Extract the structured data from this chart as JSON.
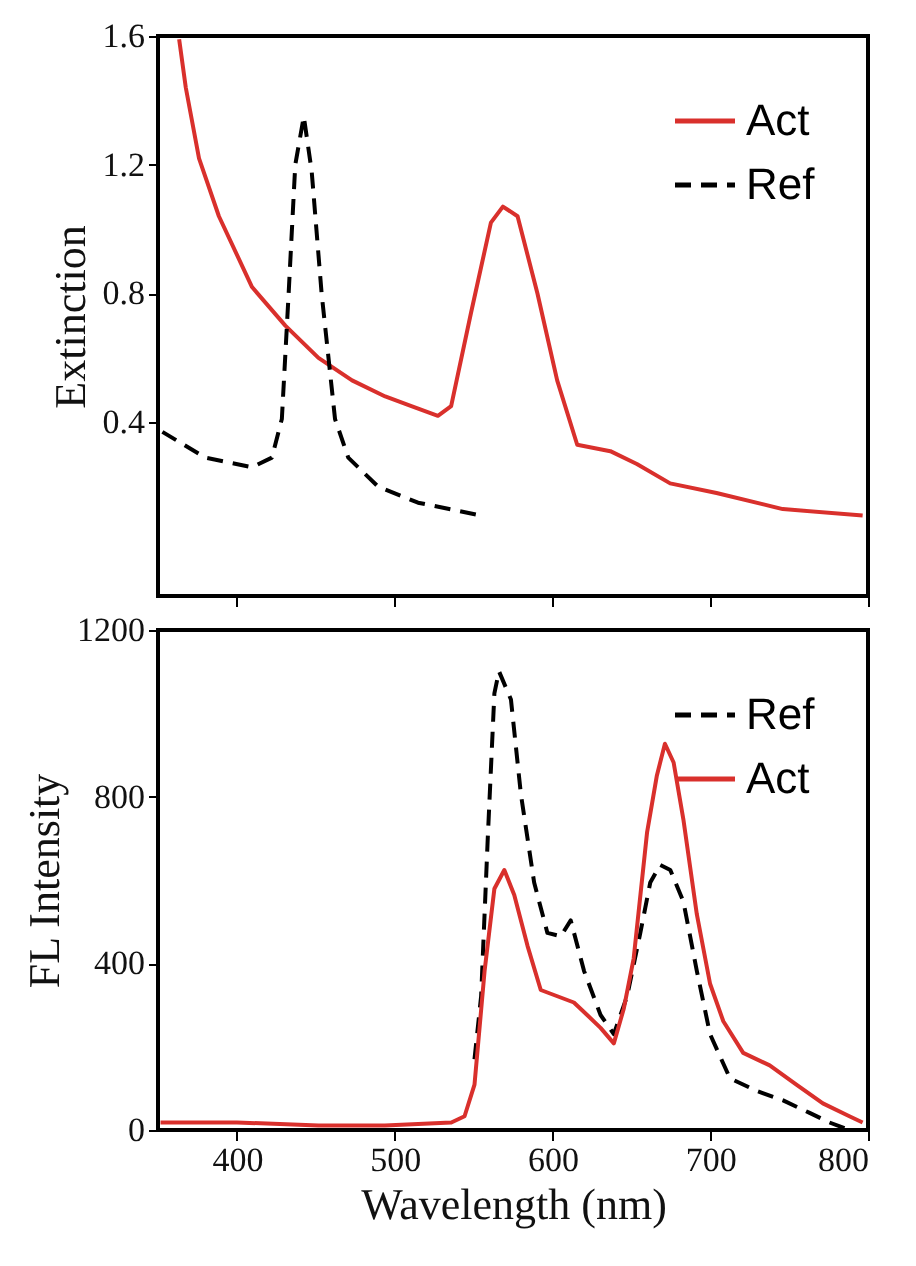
{
  "chart_data": [
    {
      "type": "line",
      "ylabel": "Extinction",
      "xlim": [
        350,
        800
      ],
      "xticks": [
        400,
        500,
        600,
        700,
        800
      ],
      "ylim": [
        -0.14,
        1.6
      ],
      "yticks": [
        0.4,
        0.8,
        1.2,
        1.6
      ],
      "tick_labels": "y",
      "legend": "top right",
      "grid": false,
      "series": [
        {
          "name": "Act",
          "color": "#d9302c",
          "line_style": "solid",
          "x": [
            363.4,
            367.6,
            376,
            388.6,
            409.6,
            430.7,
            451.7,
            473,
            494,
            510.6,
            527.4,
            535.8,
            548.4,
            561,
            568.6,
            577.9,
            590.5,
            603,
            615.7,
            636.7,
            653.5,
            674.6,
            704,
            746,
            796.6
          ],
          "values": [
            1.59,
            1.44,
            1.22,
            1.04,
            0.82,
            0.7,
            0.6,
            0.53,
            0.48,
            0.45,
            0.42,
            0.45,
            0.74,
            1.02,
            1.07,
            1.04,
            0.8,
            0.53,
            0.33,
            0.31,
            0.27,
            0.21,
            0.18,
            0.13,
            0.11
          ]
        },
        {
          "name": "Ref",
          "color": "#000000",
          "line_style": "dashed",
          "x": [
            352.8,
            380,
            409.6,
            422.2,
            428.5,
            432.8,
            437,
            442.4,
            447.4,
            453.7,
            462.2,
            470.6,
            489.5,
            514.8,
            554.7
          ],
          "values": [
            0.37,
            0.29,
            0.26,
            0.29,
            0.41,
            0.8,
            1.2,
            1.35,
            1.18,
            0.8,
            0.41,
            0.29,
            0.2,
            0.15,
            0.11
          ]
        }
      ]
    },
    {
      "type": "line",
      "xlabel": "Wavelength (nm)",
      "ylabel": "FL Intensity",
      "xlim": [
        350,
        800
      ],
      "xticks": [
        400,
        500,
        600,
        700,
        800
      ],
      "ylim": [
        0,
        1200
      ],
      "yticks": [
        0,
        400,
        800,
        1200
      ],
      "legend": "top right",
      "grid": false,
      "series": [
        {
          "name": "Ref",
          "color": "#000000",
          "line_style": "dashed",
          "x": [
            550.6,
            554.8,
            559,
            563.2,
            566.1,
            573.7,
            580,
            588.4,
            596.8,
            605.3,
            611.6,
            620,
            630.5,
            638.9,
            647.3,
            655.7,
            662,
            668.3,
            674.7,
            683,
            691.5,
            699.9,
            712.5,
            729.3,
            746.2,
            763,
            775.6,
            788.2
          ],
          "values": [
            170,
            321,
            700,
            1048,
            1101,
            1033,
            806,
            594,
            473,
            465,
            503,
            382,
            276,
            230,
            321,
            473,
            594,
            636,
            624,
            548,
            382,
            230,
            124,
            94,
            71,
            41,
            18,
            0
          ]
        },
        {
          "name": "Act",
          "color": "#d9302c",
          "line_style": "solid",
          "x": [
            351.6,
            367.6,
            400,
            451.7,
            493.8,
            535.9,
            544.3,
            550.6,
            557,
            563.2,
            569.5,
            575.8,
            584.2,
            592.6,
            603.1,
            613.6,
            622,
            630.5,
            638.9,
            645.2,
            651.5,
            660,
            666.2,
            671.3,
            676.8,
            683,
            691.5,
            699.9,
            708.3,
            720.9,
            737.7,
            754.6,
            771.4,
            788.2,
            796.6
          ],
          "values": [
            18,
            18,
            18,
            11,
            11,
            18,
            33,
            109,
            382,
            579,
            624,
            564,
            442,
            336,
            321,
            306,
            276,
            245,
            208,
            291,
            412,
            715,
            851,
            927,
            882,
            745,
            518,
            351,
            261,
            185,
            155,
            109,
            64,
            33,
            18
          ]
        }
      ]
    }
  ]
}
